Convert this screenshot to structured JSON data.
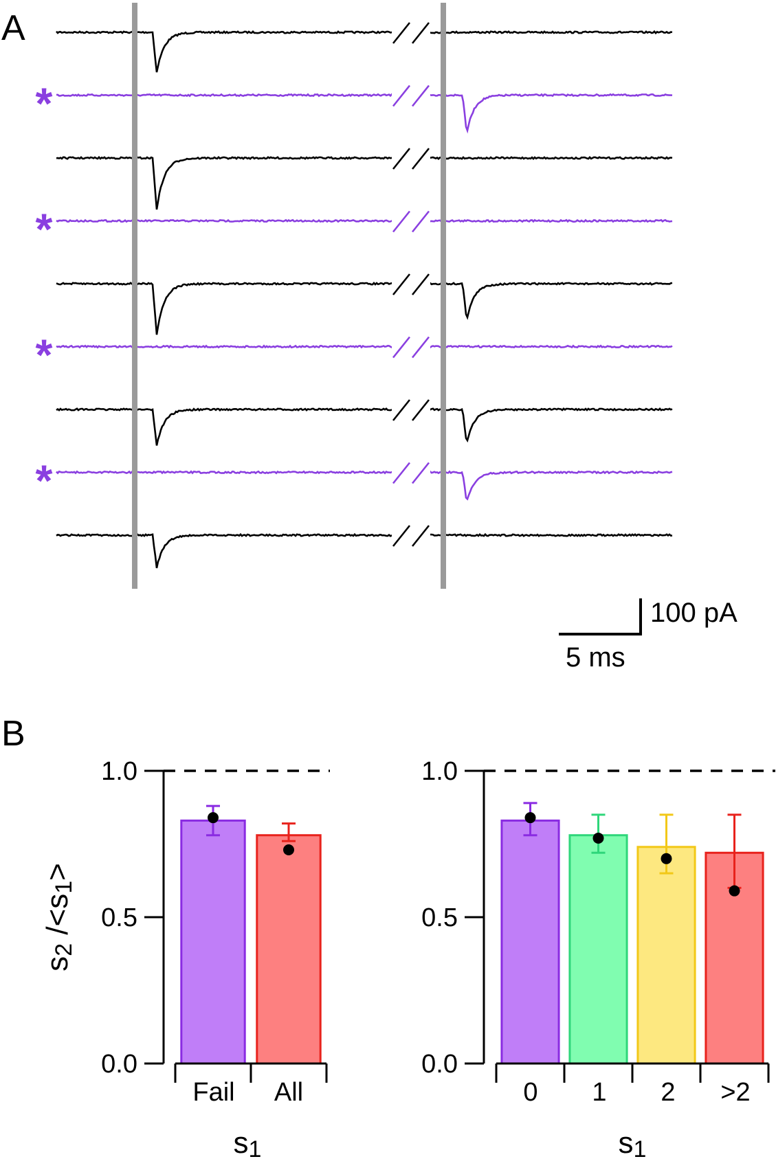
{
  "panel_a": {
    "label": "A",
    "trace_colors": {
      "black": "#000000",
      "purple": "#8a3fe0"
    },
    "stimulus_color": "#9a9a9a",
    "trace_order": [
      "black",
      "purple",
      "black",
      "purple",
      "black",
      "purple",
      "black",
      "purple",
      "black"
    ],
    "starred_traces": [
      1,
      3,
      5,
      7
    ],
    "asterisk_symbol": "*",
    "first_response": [
      {
        "trace": 1,
        "amplitude_pA": 108
      },
      {
        "trace": 2,
        "amplitude_pA": 0
      },
      {
        "trace": 3,
        "amplitude_pA": 138
      },
      {
        "trace": 4,
        "amplitude_pA": 0
      },
      {
        "trace": 5,
        "amplitude_pA": 136
      },
      {
        "trace": 6,
        "amplitude_pA": 0
      },
      {
        "trace": 7,
        "amplitude_pA": 97
      },
      {
        "trace": 8,
        "amplitude_pA": 0
      },
      {
        "trace": 9,
        "amplitude_pA": 87
      }
    ],
    "second_response": [
      {
        "trace": 1,
        "amplitude_pA": 0
      },
      {
        "trace": 2,
        "amplitude_pA": 103
      },
      {
        "trace": 3,
        "amplitude_pA": 0
      },
      {
        "trace": 4,
        "amplitude_pA": 0
      },
      {
        "trace": 5,
        "amplitude_pA": 97
      },
      {
        "trace": 6,
        "amplitude_pA": 0
      },
      {
        "trace": 7,
        "amplitude_pA": 93
      },
      {
        "trace": 8,
        "amplitude_pA": 81
      },
      {
        "trace": 9,
        "amplitude_pA": 0
      }
    ],
    "scale_bar": {
      "current": "100 pA",
      "time": "5 ms"
    }
  },
  "panel_b": {
    "label": "B"
  },
  "chart_data": [
    {
      "type": "bar",
      "title": "",
      "categories": [
        "Fail",
        "All"
      ],
      "values": [
        0.83,
        0.78
      ],
      "error_low": [
        0.78,
        0.76
      ],
      "error_high": [
        0.88,
        0.82
      ],
      "points": [
        0.84,
        0.73
      ],
      "bar_colors": [
        "#c07ef8",
        "#fd8080"
      ],
      "edge_colors": [
        "#8a2be2",
        "#e8221c"
      ],
      "xlabel": "s1",
      "ylabel": "s2 /<s1>",
      "ylim": [
        0.0,
        1.0
      ],
      "yticks": [
        "0.0",
        "0.5",
        "1.0"
      ],
      "reference_line": 1.0
    },
    {
      "type": "bar",
      "title": "",
      "categories": [
        "0",
        "1",
        "2",
        ">2"
      ],
      "values": [
        0.83,
        0.78,
        0.74,
        0.72
      ],
      "error_low": [
        0.78,
        0.72,
        0.65,
        0.6
      ],
      "error_high": [
        0.89,
        0.85,
        0.85,
        0.85
      ],
      "points": [
        0.84,
        0.77,
        0.7,
        0.59
      ],
      "bar_colors": [
        "#c07ef8",
        "#80fdb0",
        "#fde880",
        "#fd8080"
      ],
      "edge_colors": [
        "#8a2be2",
        "#2ed67a",
        "#f2c818",
        "#e8221c"
      ],
      "xlabel": "s1",
      "ylabel": "",
      "ylim": [
        0.0,
        1.0
      ],
      "yticks": [
        "0.0",
        "0.5",
        "1.0"
      ],
      "reference_line": 1.0
    }
  ]
}
